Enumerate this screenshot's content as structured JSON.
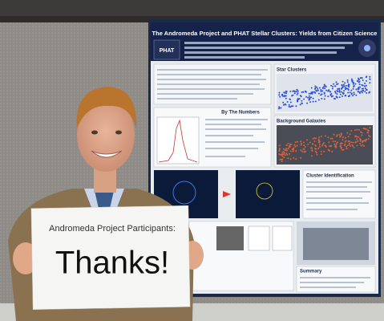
{
  "photo": {
    "sign": {
      "line1": "Andromeda Project Participants:",
      "line2": "Thanks!"
    },
    "poster": {
      "title": "The Andromeda Project and PHAT Stellar Clusters: Yields from Citizen Science",
      "logo": "PHAT",
      "panels": {
        "star_clusters": "Star Clusters",
        "background_galaxies": "Background Galaxies",
        "by_the_numbers": "By The Numbers",
        "cluster_identification": "Cluster Identification",
        "summary": "Summary"
      }
    }
  }
}
